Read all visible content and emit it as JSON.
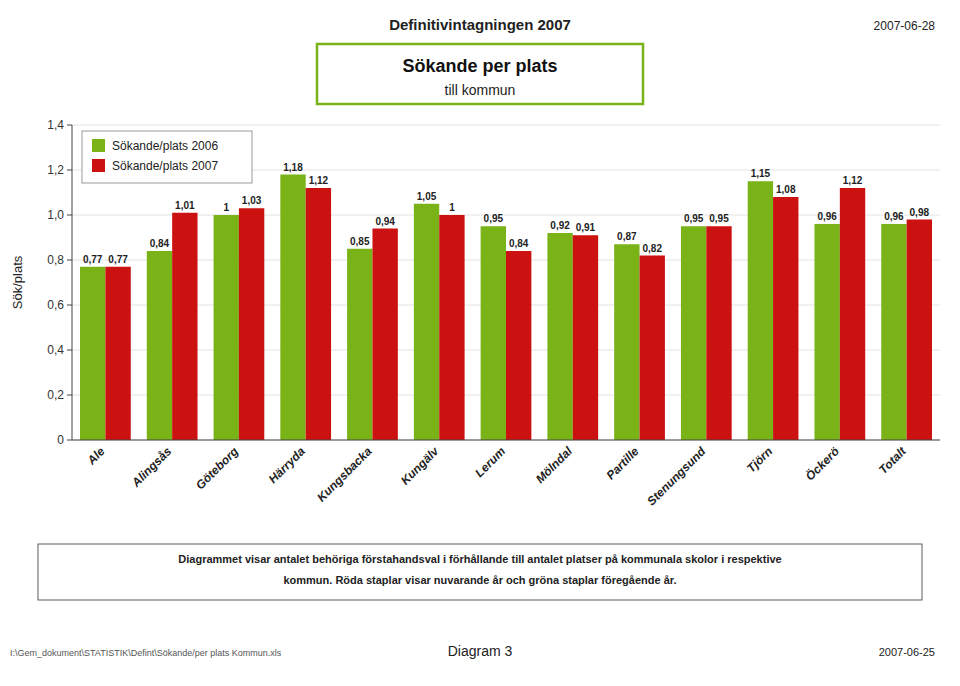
{
  "chart_data": {
    "type": "bar",
    "title": "Sökande per plats",
    "subtitle": "till kommun",
    "y_label": "Sök/plats",
    "annotations": [
      "Definitivintagningen 2007",
      "2007-06-28",
      "Diagrammet visar antalet behöriga förstahandsval i förhållande till antalet platser på kommunala skolor i respektive",
      "kommun. Röda staplar visar nuvarande år och gröna staplar föregående år.",
      "Diagram 3",
      "I:\\Gem_dokument\\STATISTIK\\Defint\\Sökande/per plats Kommun.xls",
      "2007-06-25"
    ],
    "categories": [
      "Ale",
      "Alingsås",
      "Göteborg",
      "Härryda",
      "Kungsbacka",
      "Kungälv",
      "Lerum",
      "Mölndal",
      "Partille",
      "Stenungsund",
      "Tjörn",
      "Öckerö",
      "Totalt"
    ],
    "series": [
      {
        "name": "Sökande/plats 2006",
        "color": "#7ab317",
        "values": [
          0.77,
          0.84,
          1.0,
          1.18,
          0.85,
          1.05,
          0.95,
          0.92,
          0.87,
          0.95,
          1.15,
          0.96,
          0.96
        ],
        "value_labels": [
          "0,77",
          "0,84",
          "1",
          "1,18",
          "0,85",
          "1,05",
          "0,95",
          "0,92",
          "0,87",
          "0,95",
          "1,15",
          "0,96",
          "0,96"
        ]
      },
      {
        "name": "Sökande/plats 2007",
        "color": "#cc1111",
        "values": [
          0.77,
          1.01,
          1.03,
          1.12,
          0.94,
          1.0,
          0.84,
          0.91,
          0.82,
          0.95,
          1.08,
          1.12,
          0.98
        ],
        "value_labels": [
          "0,77",
          "1,01",
          "1,03",
          "1,12",
          "0,94",
          "1",
          "0,84",
          "0,91",
          "0,82",
          "0,95",
          "1,08",
          "1,12",
          "0,98"
        ]
      }
    ],
    "ylim": [
      0,
      1.4
    ],
    "yticks": [
      0,
      {
        "value": 0.2,
        "label": "0,2"
      },
      {
        "value": 0.4,
        "label": "0,4"
      },
      {
        "value": 0.6,
        "label": "0,6"
      },
      {
        "value": 0.8,
        "label": "0,8"
      },
      {
        "value": 1.0,
        "label": "1,0"
      },
      {
        "value": 1.2,
        "label": "1,2"
      },
      {
        "value": 1.4,
        "label": "1,4"
      }
    ],
    "grid": true,
    "legend": "top-left",
    "data_labels": true
  }
}
